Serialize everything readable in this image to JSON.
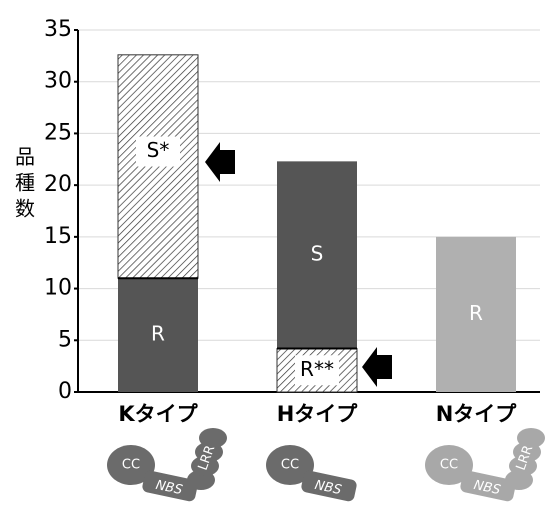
{
  "chart_data": {
    "type": "stacked-bar",
    "y_label": "品種数",
    "ylim": [
      0,
      35
    ],
    "yticks": [
      0,
      5,
      10,
      15,
      20,
      25,
      30,
      35
    ],
    "grid": true,
    "bars": [
      {
        "category": "Kタイプ",
        "segments": [
          {
            "label": "R",
            "value": 11,
            "fill": "#555555"
          },
          {
            "label": "S*",
            "value": 21.6,
            "fill": "hatch"
          }
        ],
        "domains": [
          "CC",
          "NBS",
          "LRR"
        ],
        "domain_color": "#6b6b6b"
      },
      {
        "category": "Hタイプ",
        "segments": [
          {
            "label": "R**",
            "value": 4.2,
            "fill": "hatch"
          },
          {
            "label": "S",
            "value": 18.1,
            "fill": "#555555"
          }
        ],
        "domains": [
          "CC",
          "NBS"
        ],
        "domain_color": "#6b6b6b"
      },
      {
        "category": "Nタイプ",
        "segments": [
          {
            "label": "R",
            "value": 15,
            "fill": "#b0b0b0"
          }
        ],
        "domains": [
          "CC",
          "NBS",
          "LRR"
        ],
        "domain_color": "#a8a8a8"
      }
    ]
  }
}
